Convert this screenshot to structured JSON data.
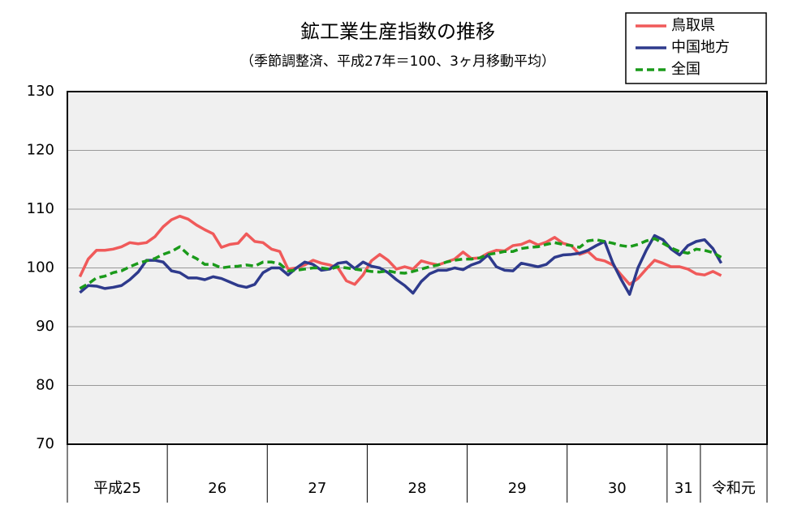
{
  "chart_data": {
    "type": "line",
    "title": "鉱工業生産指数の推移",
    "subtitle": "（季節調整済、平成27年＝100、3ヶ月移動平均）",
    "xlim": [
      0,
      84
    ],
    "xticks": [
      0,
      12,
      24,
      36,
      48,
      60,
      72,
      76,
      84
    ],
    "x_group_labels": [
      "平成25",
      "26",
      "27",
      "28",
      "29",
      "30",
      "31",
      "令和元"
    ],
    "ylim": [
      70,
      130
    ],
    "yticks": [
      70,
      80,
      90,
      100,
      110,
      120,
      130
    ],
    "grid": true,
    "legend": "top-right",
    "x": [
      1.5,
      2.5,
      3.5,
      4.5,
      5.5,
      6.5,
      7.5,
      8.5,
      9.5,
      10.5,
      11.5,
      12.5,
      13.5,
      14.5,
      15.5,
      16.5,
      17.5,
      18.5,
      19.5,
      20.5,
      21.5,
      22.5,
      23.5,
      24.5,
      25.5,
      26.5,
      27.5,
      28.5,
      29.5,
      30.5,
      31.5,
      32.5,
      33.5,
      34.5,
      35.5,
      36.5,
      37.5,
      38.5,
      39.5,
      40.5,
      41.5,
      42.5,
      43.5,
      44.5,
      45.5,
      46.5,
      47.5,
      48.5,
      49.5,
      50.5,
      51.5,
      52.5,
      53.5,
      54.5,
      55.5,
      56.5,
      57.5,
      58.5,
      59.5,
      60.5,
      61.5,
      62.5,
      63.5,
      64.5,
      65.5,
      66.5,
      67.5,
      68.5,
      69.5,
      70.5,
      71.5,
      72.5,
      73.5,
      74.5,
      75.5,
      76.5,
      77.5,
      78.5
    ],
    "series": [
      {
        "name": "鳥取県",
        "color": "#f05a5a",
        "dashed": false,
        "values": [
          98.5,
          101.5,
          103,
          103,
          103.2,
          103.6,
          104.3,
          104.1,
          104.3,
          105.3,
          107,
          108.2,
          108.8,
          108.3,
          107.3,
          106.5,
          105.8,
          103.5,
          104,
          104.2,
          105.8,
          104.5,
          104.3,
          103.2,
          102.8,
          99.8,
          100,
          100.5,
          101.3,
          100.8,
          100.5,
          100,
          97.8,
          97.2,
          98.8,
          101.2,
          102.3,
          101.3,
          99.8,
          100.2,
          99.8,
          101.2,
          100.8,
          100.5,
          101,
          101.5,
          102.7,
          101.6,
          101.7,
          102.5,
          103,
          102.9,
          103.8,
          104,
          104.6,
          103.9,
          104.4,
          105.2,
          104.2,
          103.8,
          102.3,
          102.8,
          101.5,
          101.2,
          100.5,
          98.8,
          97.2,
          98.2,
          99.8,
          101.3,
          100.8,
          100.2,
          100.2,
          99.8,
          99,
          98.8,
          99.4,
          98.7
        ]
      },
      {
        "name": "中国地方",
        "color": "#2e3a8c",
        "dashed": false,
        "values": [
          95.8,
          97,
          96.9,
          96.5,
          96.7,
          97,
          98,
          99.3,
          101.3,
          101.3,
          101,
          99.5,
          99.2,
          98.3,
          98.3,
          98,
          98.5,
          98.2,
          97.6,
          97,
          96.7,
          97.2,
          99.2,
          100,
          100,
          98.8,
          100,
          101,
          100.6,
          99.6,
          99.8,
          100.8,
          101,
          99.9,
          101,
          100.3,
          100,
          99.2,
          98,
          97,
          95.7,
          97.7,
          99,
          99.6,
          99.6,
          100,
          99.7,
          100.5,
          101,
          102.2,
          100.2,
          99.6,
          99.5,
          100.8,
          100.5,
          100.2,
          100.6,
          101.8,
          102.2,
          102.3,
          102.5,
          103,
          103.8,
          104.5,
          100.8,
          98,
          95.5,
          100,
          103,
          105.5,
          104.8,
          103.2,
          102.2,
          103.8,
          104.5,
          104.8,
          103.3,
          100.8
        ]
      },
      {
        "name": "全国",
        "color": "#1a9a1a",
        "dashed": true,
        "values": [
          96.5,
          97.3,
          98.3,
          98.6,
          99.2,
          99.5,
          100.2,
          100.8,
          101.2,
          101.6,
          102.3,
          102.8,
          103.6,
          102.3,
          101.6,
          100.6,
          100.6,
          100,
          100.2,
          100.3,
          100.5,
          100.3,
          101,
          101,
          100.7,
          99.5,
          99.6,
          99.8,
          100,
          100,
          99.8,
          100.2,
          100,
          99.8,
          99.6,
          99.4,
          99.3,
          99.5,
          99.2,
          99.1,
          99.4,
          99.8,
          100.2,
          100.5,
          101,
          101.3,
          101.5,
          101.5,
          101.7,
          102.3,
          102.5,
          102.8,
          102.8,
          103.3,
          103.5,
          103.6,
          104,
          104.3,
          104,
          103.8,
          103.5,
          104.6,
          104.8,
          104.5,
          104.2,
          103.8,
          103.6,
          104,
          104.6,
          105,
          104.2,
          103.4,
          102.8,
          102.5,
          103.2,
          103,
          102.6,
          101.8
        ]
      }
    ]
  }
}
